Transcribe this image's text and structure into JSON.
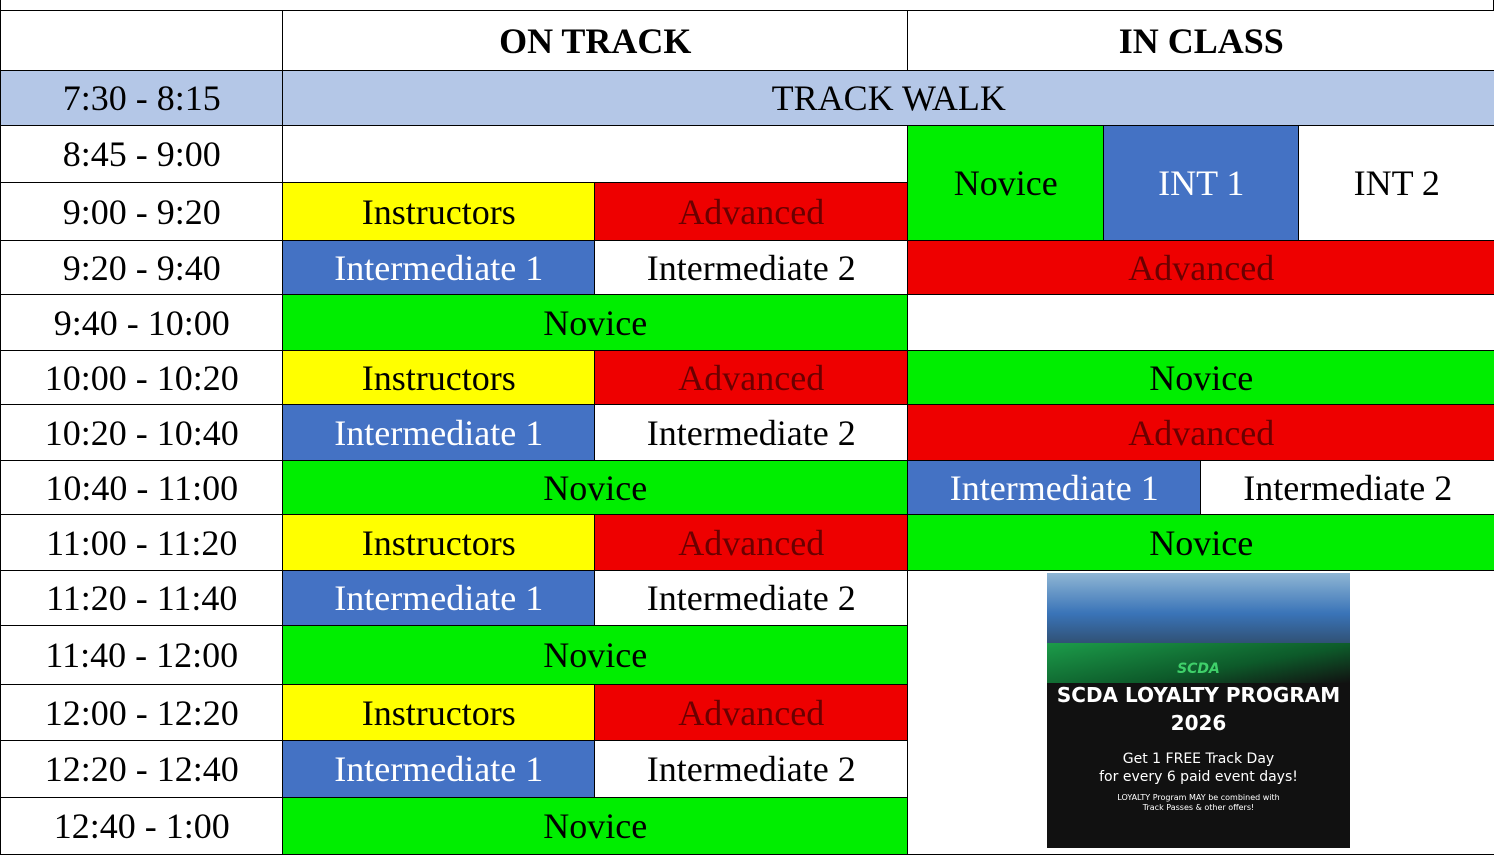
{
  "header": {
    "on_track": "ON TRACK",
    "in_class": "IN CLASS"
  },
  "track_walk": {
    "time": "7:30 - 8:15",
    "label": "TRACK WALK"
  },
  "times": [
    "8:45 - 9:00",
    "9:00 - 9:20",
    "9:20 - 9:40",
    "9:40 - 10:00",
    "10:00 - 10:20",
    "10:20 - 10:40",
    "10:40 - 11:00",
    "11:00 - 11:20",
    "11:20 - 11:40",
    "11:40 - 12:00",
    "12:00 - 12:20",
    "12:20 - 12:40",
    "12:40 - 1:00"
  ],
  "on_track": [
    [],
    [
      "Instructors",
      "Advanced"
    ],
    [
      "Intermediate 1",
      "Intermediate 2"
    ],
    [
      "Novice"
    ],
    [
      "Instructors",
      "Advanced"
    ],
    [
      "Intermediate 1",
      "Intermediate 2"
    ],
    [
      "Novice"
    ],
    [
      "Instructors",
      "Advanced"
    ],
    [
      "Intermediate 1",
      "Intermediate 2"
    ],
    [
      "Novice"
    ],
    [
      "Instructors",
      "Advanced"
    ],
    [
      "Intermediate 1",
      "Intermediate 2"
    ],
    [
      "Novice"
    ]
  ],
  "in_class": [
    [
      "Novice",
      "INT 1",
      "INT 2"
    ],
    [
      "Advanced"
    ],
    [
      "Novice"
    ],
    [
      "Advanced"
    ],
    [
      "Intermediate 1",
      "Intermediate 2"
    ],
    [
      "Novice"
    ]
  ],
  "ad": {
    "logo": "SCDA",
    "title": "SCDA LOYALTY PROGRAM",
    "year": "2026",
    "line1": "Get 1 FREE Track Day",
    "line2": "for every 6 paid event days!",
    "note1": "LOYALTY Program MAY be combined with",
    "note2": "Track Passes & other offers!"
  }
}
